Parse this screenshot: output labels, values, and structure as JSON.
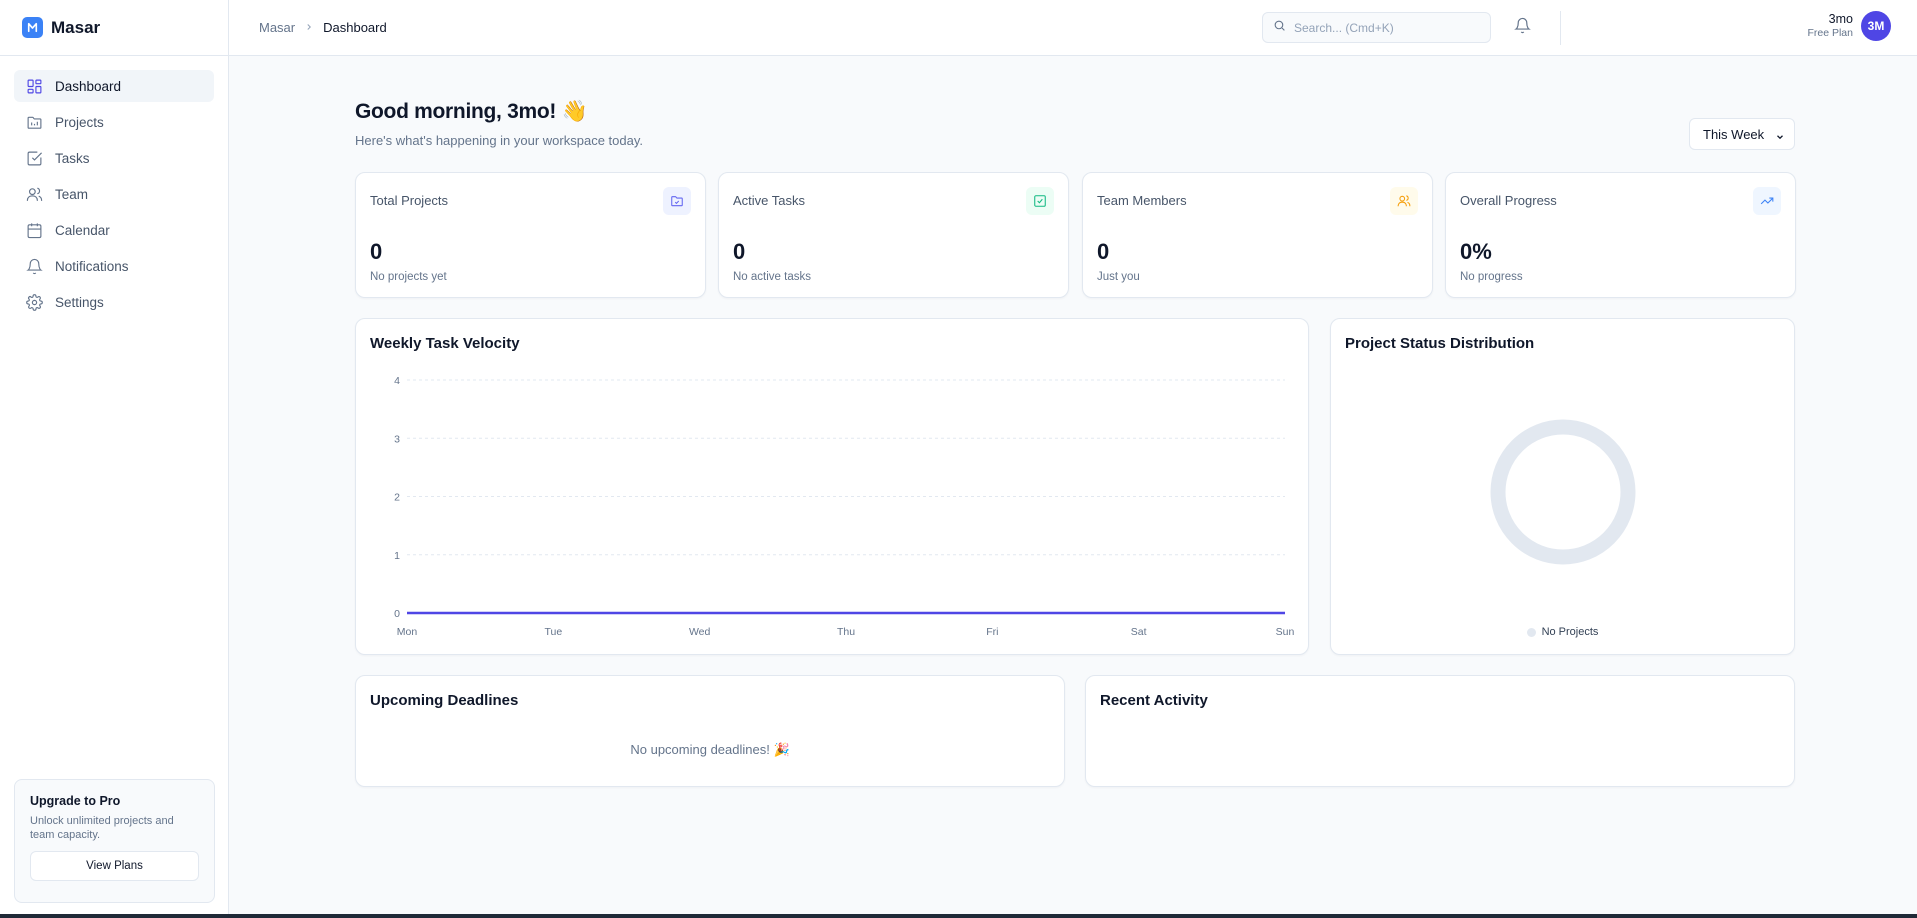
{
  "app": {
    "name": "Masar"
  },
  "sidebar": {
    "items": [
      {
        "label": "Dashboard",
        "icon": "dashboard-icon",
        "active": true
      },
      {
        "label": "Projects",
        "icon": "projects-icon"
      },
      {
        "label": "Tasks",
        "icon": "tasks-icon"
      },
      {
        "label": "Team",
        "icon": "team-icon"
      },
      {
        "label": "Calendar",
        "icon": "calendar-icon"
      },
      {
        "label": "Notifications",
        "icon": "bell-icon"
      },
      {
        "label": "Settings",
        "icon": "gear-icon"
      }
    ],
    "upgrade": {
      "title": "Upgrade to Pro",
      "text": "Unlock unlimited projects and team capacity.",
      "button": "View Plans"
    }
  },
  "header": {
    "breadcrumb": {
      "root": "Masar",
      "current": "Dashboard"
    },
    "search_placeholder": "Search... (Cmd+K)",
    "user": {
      "name": "3mo",
      "plan": "Free Plan",
      "initials": "3M"
    }
  },
  "main": {
    "greeting": "Good morning, 3mo! 👋",
    "subtitle": "Here's what's happening in your workspace today.",
    "range": "This Week",
    "stats": [
      {
        "title": "Total Projects",
        "value": "0",
        "sub": "No projects yet",
        "icon": "folder-icon",
        "color": "#6366f1",
        "bg": "#eef2ff"
      },
      {
        "title": "Active Tasks",
        "value": "0",
        "sub": "No active tasks",
        "icon": "check-square-icon",
        "color": "#10b981",
        "bg": "#ecfdf5"
      },
      {
        "title": "Team Members",
        "value": "0",
        "sub": "Just you",
        "icon": "users-icon",
        "color": "#f59e0b",
        "bg": "#fffbeb"
      },
      {
        "title": "Overall Progress",
        "value": "0%",
        "sub": "No progress",
        "icon": "trending-up-icon",
        "color": "#3b82f6",
        "bg": "#eff6ff"
      }
    ],
    "velocity_title": "Weekly Task Velocity",
    "distribution_title": "Project Status Distribution",
    "deadlines": {
      "title": "Upcoming Deadlines",
      "empty": "No upcoming deadlines! 🎉"
    },
    "activity": {
      "title": "Recent Activity"
    }
  },
  "chart_data": [
    {
      "type": "line",
      "title": "Weekly Task Velocity",
      "categories": [
        "Mon",
        "Tue",
        "Wed",
        "Thu",
        "Fri",
        "Sat",
        "Sun"
      ],
      "series": [
        {
          "values": [
            0,
            0,
            0,
            0,
            0,
            0,
            0
          ],
          "color": "#4f46e5"
        }
      ],
      "ylim": [
        0,
        4
      ],
      "yticks": [
        0,
        1,
        2,
        3,
        4
      ],
      "grid": true
    },
    {
      "type": "pie",
      "title": "Project Status Distribution",
      "slices": [
        {
          "label": "No Projects",
          "value": 1,
          "color": "#e2e8f0"
        }
      ],
      "legend": "bottom"
    }
  ]
}
